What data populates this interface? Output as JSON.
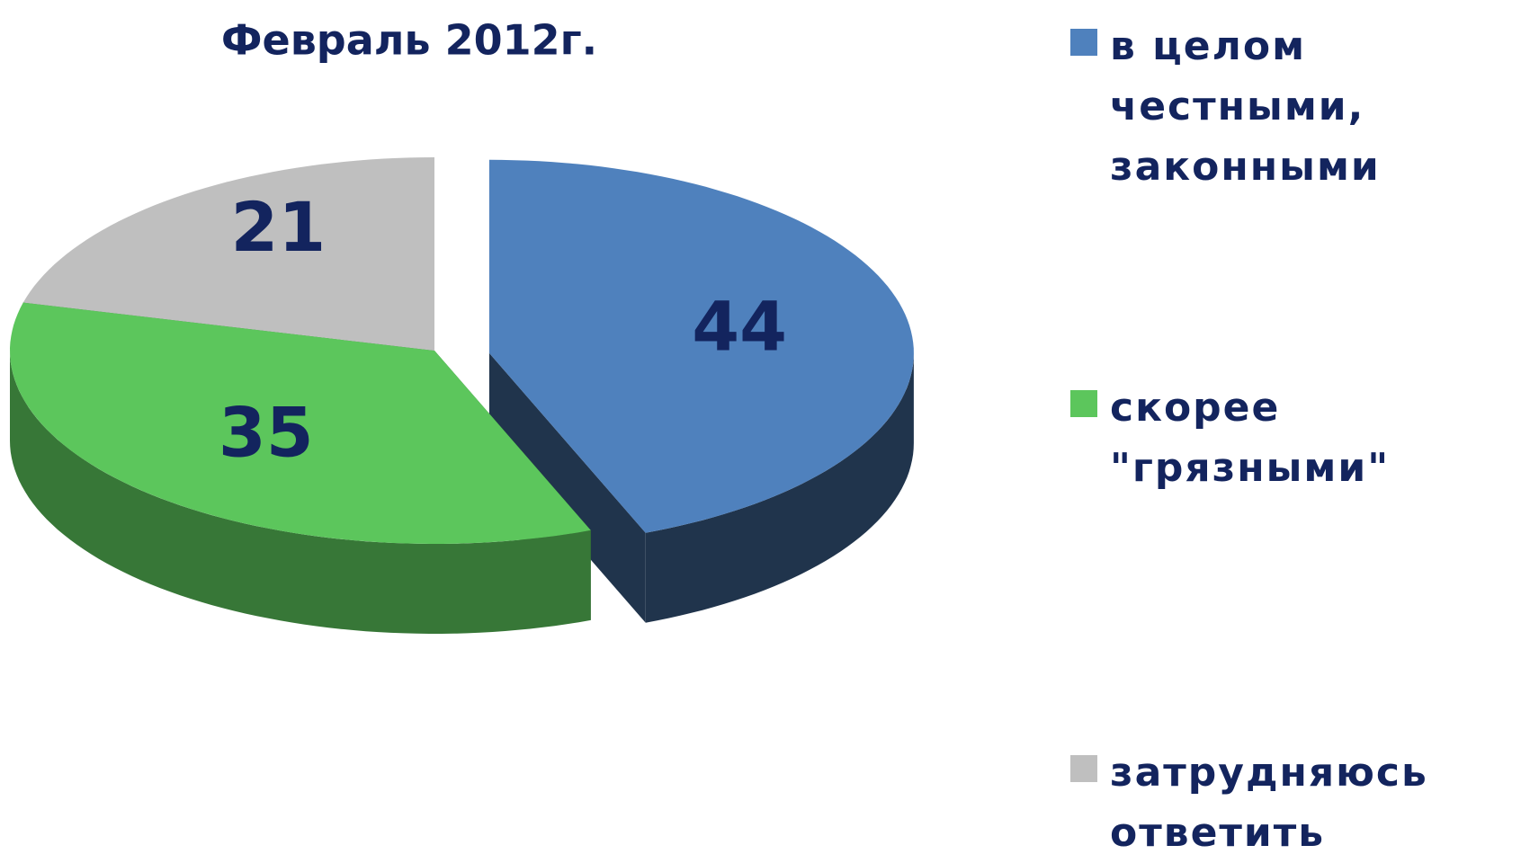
{
  "chart_data": {
    "type": "pie",
    "title": "Февраль 2012г.",
    "categories": [
      "в целом честными, законными",
      "скорее \"грязными\"",
      "затрудняюсь ответить"
    ],
    "values": [
      44,
      35,
      21
    ],
    "colors": [
      "#4f81bd",
      "#5cc65c",
      "#bfbfbf"
    ],
    "legend": "right"
  }
}
